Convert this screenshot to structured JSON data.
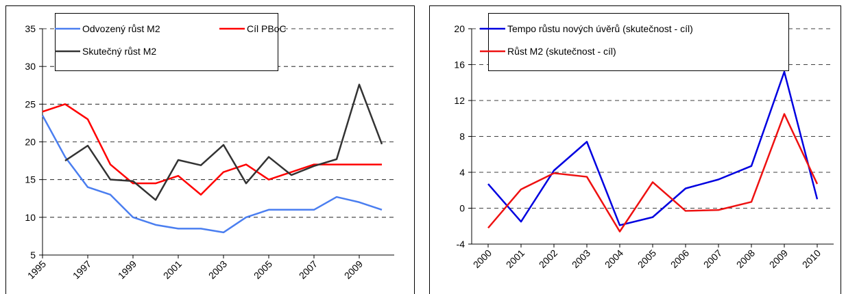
{
  "chart_data": [
    {
      "type": "line",
      "categories": [
        "1995",
        null,
        "1997",
        null,
        "1999",
        null,
        "2001",
        null,
        "2003",
        null,
        "2005",
        null,
        "2007",
        null,
        "2009",
        null
      ],
      "series": [
        {
          "name": "Odvozený růst M2",
          "color": "#4a7ef0",
          "values": [
            23.5,
            18,
            14,
            13,
            10,
            9,
            8.5,
            8.5,
            8,
            10,
            11,
            11,
            11,
            12.7,
            12,
            11
          ]
        },
        {
          "name": "Cíl PBoC",
          "color": "#ff0000",
          "values": [
            24,
            25,
            23,
            17,
            14.5,
            14.5,
            15.5,
            13,
            16,
            17,
            15,
            16,
            17,
            17,
            17,
            17
          ]
        },
        {
          "name": "Skutečný růst M2",
          "color": "#333333",
          "values": [
            null,
            17.5,
            19.5,
            15,
            14.8,
            12.3,
            17.6,
            16.9,
            19.6,
            14.5,
            18,
            15.6,
            16.8,
            17.7,
            27.6,
            19.7
          ]
        }
      ],
      "ylim": [
        5,
        35
      ],
      "yticks": [
        5,
        10,
        15,
        20,
        25,
        30,
        35
      ],
      "grid": true,
      "legend": "top"
    },
    {
      "type": "line",
      "categories": [
        "2000",
        "2001",
        "2002",
        "2003",
        "2004",
        "2005",
        "2006",
        "2007",
        "2008",
        "2009",
        "2010"
      ],
      "series": [
        {
          "name": "Tempo růstu nových úvěrů (skutečnost - cíl)",
          "color": "#0000e0",
          "values": [
            2.7,
            -1.5,
            4.2,
            7.4,
            -1.9,
            -1,
            2.2,
            3.2,
            4.7,
            15.2,
            1
          ]
        },
        {
          "name": "Růst M2 (skutečnost - cíl)",
          "color": "#ee1111",
          "values": [
            -2.2,
            2.1,
            3.9,
            3.5,
            -2.6,
            2.9,
            -0.3,
            -0.2,
            0.7,
            10.5,
            2.7
          ]
        }
      ],
      "ylim": [
        -4,
        20
      ],
      "yticks": [
        -4,
        0,
        4,
        8,
        12,
        16,
        20
      ],
      "grid": true,
      "legend": "top"
    }
  ]
}
